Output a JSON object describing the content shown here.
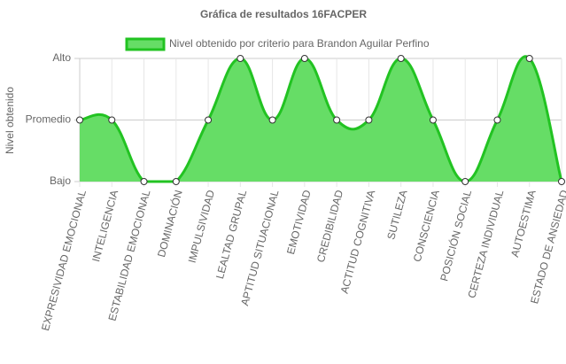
{
  "chart_data": {
    "type": "area",
    "title": "Gráfica de resultados 16FACPER",
    "y_label": "Nivel obtenido",
    "categories": [
      "EXPRESIVIDAD EMOCIONAL",
      "INTELIGENCIA",
      "ESTABILIDAD EMOCIONAL",
      "DOMINACIÓN",
      "IMPULSIVIDAD",
      "LEALTAD GRUPAL",
      "APTITUD SITUACIONAL",
      "EMOTIVIDAD",
      "CREDIBILIDAD",
      "ACTITUD COGNITIVA",
      "SUTILEZA",
      "CONSCIENCIA",
      "POSICIÓN SOCIAL",
      "CERTEZA INDIVIDUAL",
      "AUTOESTIMA",
      "ESTADO DE ANSIEDAD"
    ],
    "series": [
      {
        "name": "Nivel obtenido por criterio para Brandon Aguilar Perfino",
        "color": "#22c322",
        "fill": "#66dd66",
        "values": [
          2,
          2,
          1,
          1,
          2,
          3,
          2,
          3,
          2,
          2,
          3,
          2,
          1,
          2,
          3,
          1
        ]
      }
    ],
    "ylim": [
      1,
      3
    ],
    "yticks": [
      {
        "value": 1,
        "label": "Bajo"
      },
      {
        "value": 2,
        "label": "Promedio"
      },
      {
        "value": 3,
        "label": "Alto"
      }
    ],
    "grid": true,
    "legend": "top"
  }
}
